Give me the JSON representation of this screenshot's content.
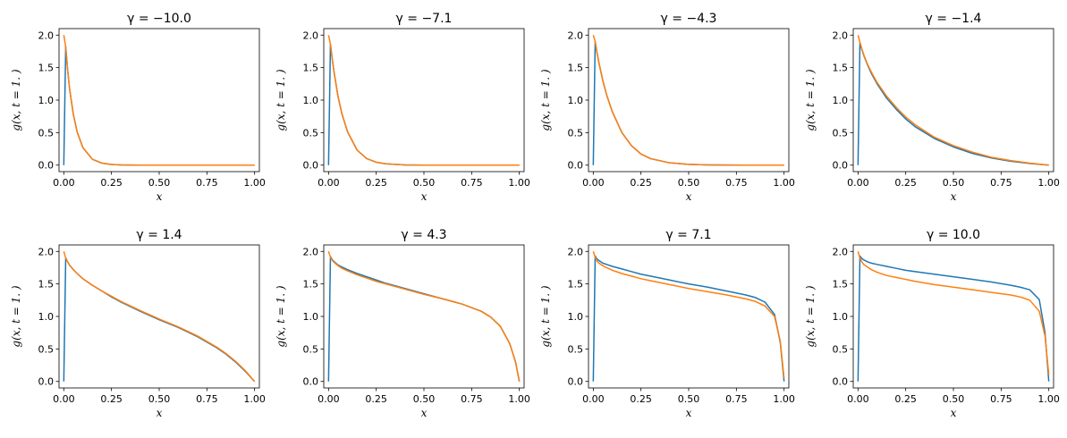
{
  "figure": {
    "colors": {
      "series1": "#1f77b4",
      "series2": "#ff7f0e",
      "axes": "#000000",
      "background": "#ffffff"
    }
  },
  "chart_data": [
    {
      "type": "line",
      "title": "γ = −10.0",
      "xlabel": "x",
      "ylabel": "g(x, t = 1. )",
      "xlim": [
        -0.025,
        1.025
      ],
      "ylim": [
        -0.1,
        2.1
      ],
      "xticks": [
        "0.00",
        "0.25",
        "0.50",
        "0.75",
        "1.00"
      ],
      "yticks": [
        "0.0",
        "0.5",
        "1.0",
        "1.5",
        "2.0"
      ],
      "grid": false,
      "x": [
        0,
        0.01,
        0.02,
        0.03,
        0.05,
        0.07,
        0.1,
        0.15,
        0.2,
        0.25,
        0.3,
        0.4,
        0.5,
        0.6,
        0.7,
        0.8,
        0.9,
        1.0
      ],
      "series": [
        {
          "values": [
            0,
            1.82,
            1.47,
            1.18,
            0.78,
            0.51,
            0.27,
            0.09,
            0.03,
            0.01,
            0.004,
            0,
            0,
            0,
            0,
            0,
            0,
            0
          ]
        },
        {
          "values": [
            2.0,
            1.82,
            1.47,
            1.18,
            0.78,
            0.51,
            0.27,
            0.09,
            0.03,
            0.01,
            0.004,
            0,
            0,
            0,
            0,
            0,
            0,
            0
          ]
        }
      ]
    },
    {
      "type": "line",
      "title": "γ = −7.1",
      "xlabel": "x",
      "ylabel": "g(x, t = 1. )",
      "xlim": [
        -0.025,
        1.025
      ],
      "ylim": [
        -0.1,
        2.1
      ],
      "xticks": [
        "0.00",
        "0.25",
        "0.50",
        "0.75",
        "1.00"
      ],
      "yticks": [
        "0.0",
        "0.5",
        "1.0",
        "1.5",
        "2.0"
      ],
      "grid": false,
      "x": [
        0,
        0.01,
        0.02,
        0.03,
        0.05,
        0.07,
        0.1,
        0.15,
        0.2,
        0.25,
        0.3,
        0.4,
        0.5,
        0.6,
        0.7,
        0.8,
        0.9,
        1.0
      ],
      "series": [
        {
          "values": [
            0,
            1.86,
            1.62,
            1.41,
            1.05,
            0.79,
            0.51,
            0.23,
            0.1,
            0.045,
            0.02,
            0.004,
            0,
            0,
            0,
            0,
            0,
            0
          ]
        },
        {
          "values": [
            2.0,
            1.86,
            1.62,
            1.41,
            1.05,
            0.79,
            0.51,
            0.23,
            0.1,
            0.045,
            0.02,
            0.004,
            0,
            0,
            0,
            0,
            0,
            0
          ]
        }
      ]
    },
    {
      "type": "line",
      "title": "γ = −4.3",
      "xlabel": "x",
      "ylabel": "g(x, t = 1. )",
      "xlim": [
        -0.025,
        1.025
      ],
      "ylim": [
        -0.1,
        2.1
      ],
      "xticks": [
        "0.00",
        "0.25",
        "0.50",
        "0.75",
        "1.00"
      ],
      "yticks": [
        "0.0",
        "0.5",
        "1.0",
        "1.5",
        "2.0"
      ],
      "grid": false,
      "x": [
        0,
        0.01,
        0.02,
        0.03,
        0.05,
        0.07,
        0.1,
        0.15,
        0.2,
        0.25,
        0.3,
        0.4,
        0.5,
        0.6,
        0.7,
        0.8,
        0.9,
        1.0
      ],
      "series": [
        {
          "values": [
            0,
            1.9,
            1.72,
            1.57,
            1.3,
            1.08,
            0.82,
            0.5,
            0.3,
            0.17,
            0.1,
            0.035,
            0.012,
            0.004,
            0.001,
            0,
            0,
            0
          ]
        },
        {
          "values": [
            2.0,
            1.9,
            1.72,
            1.57,
            1.3,
            1.08,
            0.82,
            0.5,
            0.3,
            0.17,
            0.1,
            0.035,
            0.012,
            0.004,
            0.001,
            0,
            0,
            0
          ]
        }
      ]
    },
    {
      "type": "line",
      "title": "γ = −1.4",
      "xlabel": "x",
      "ylabel": "g(x, t = 1. )",
      "xlim": [
        -0.025,
        1.025
      ],
      "ylim": [
        -0.1,
        2.1
      ],
      "xticks": [
        "0.00",
        "0.25",
        "0.50",
        "0.75",
        "1.00"
      ],
      "yticks": [
        "0.0",
        "0.5",
        "1.0",
        "1.5",
        "2.0"
      ],
      "grid": false,
      "x": [
        0,
        0.01,
        0.02,
        0.03,
        0.05,
        0.07,
        0.1,
        0.15,
        0.2,
        0.25,
        0.3,
        0.4,
        0.5,
        0.6,
        0.7,
        0.8,
        0.9,
        1.0
      ],
      "series": [
        {
          "values": [
            0,
            1.88,
            1.78,
            1.69,
            1.54,
            1.41,
            1.25,
            1.03,
            0.86,
            0.71,
            0.59,
            0.41,
            0.28,
            0.18,
            0.11,
            0.06,
            0.025,
            0
          ]
        },
        {
          "values": [
            2.0,
            1.89,
            1.79,
            1.7,
            1.55,
            1.43,
            1.27,
            1.06,
            0.89,
            0.74,
            0.62,
            0.43,
            0.3,
            0.2,
            0.12,
            0.07,
            0.03,
            0
          ]
        }
      ]
    },
    {
      "type": "line",
      "title": "γ = 1.4",
      "xlabel": "x",
      "ylabel": "g(x, t = 1. )",
      "xlim": [
        -0.025,
        1.025
      ],
      "ylim": [
        -0.1,
        2.1
      ],
      "xticks": [
        "0.00",
        "0.25",
        "0.50",
        "0.75",
        "1.00"
      ],
      "yticks": [
        "0.0",
        "0.5",
        "1.0",
        "1.5",
        "2.0"
      ],
      "grid": false,
      "x": [
        0,
        0.01,
        0.02,
        0.03,
        0.05,
        0.07,
        0.1,
        0.15,
        0.2,
        0.25,
        0.3,
        0.4,
        0.5,
        0.6,
        0.7,
        0.8,
        0.85,
        0.9,
        0.95,
        1.0
      ],
      "series": [
        {
          "values": [
            0,
            1.9,
            1.84,
            1.79,
            1.72,
            1.66,
            1.58,
            1.48,
            1.39,
            1.3,
            1.22,
            1.08,
            0.95,
            0.83,
            0.69,
            0.52,
            0.42,
            0.3,
            0.16,
            0
          ]
        },
        {
          "values": [
            2.0,
            1.9,
            1.84,
            1.79,
            1.72,
            1.66,
            1.58,
            1.48,
            1.39,
            1.31,
            1.23,
            1.09,
            0.96,
            0.84,
            0.7,
            0.53,
            0.43,
            0.31,
            0.17,
            0
          ]
        }
      ]
    },
    {
      "type": "line",
      "title": "γ = 4.3",
      "xlabel": "x",
      "ylabel": "g(x, t = 1. )",
      "xlim": [
        -0.025,
        1.025
      ],
      "ylim": [
        -0.1,
        2.1
      ],
      "xticks": [
        "0.00",
        "0.25",
        "0.50",
        "0.75",
        "1.00"
      ],
      "yticks": [
        "0.0",
        "0.5",
        "1.0",
        "1.5",
        "2.0"
      ],
      "grid": false,
      "x": [
        0,
        0.01,
        0.02,
        0.03,
        0.05,
        0.07,
        0.1,
        0.15,
        0.2,
        0.25,
        0.3,
        0.4,
        0.5,
        0.6,
        0.7,
        0.8,
        0.85,
        0.9,
        0.95,
        0.98,
        1.0
      ],
      "series": [
        {
          "values": [
            0,
            1.92,
            1.87,
            1.84,
            1.79,
            1.76,
            1.72,
            1.66,
            1.61,
            1.56,
            1.51,
            1.43,
            1.35,
            1.27,
            1.19,
            1.08,
            0.99,
            0.85,
            0.58,
            0.3,
            0
          ]
        },
        {
          "values": [
            2.0,
            1.91,
            1.86,
            1.83,
            1.78,
            1.74,
            1.7,
            1.64,
            1.59,
            1.54,
            1.5,
            1.42,
            1.34,
            1.27,
            1.19,
            1.08,
            0.99,
            0.85,
            0.58,
            0.3,
            0
          ]
        }
      ]
    },
    {
      "type": "line",
      "title": "γ = 7.1",
      "xlabel": "x",
      "ylabel": "g(x, t = 1. )",
      "xlim": [
        -0.025,
        1.025
      ],
      "ylim": [
        -0.1,
        2.1
      ],
      "xticks": [
        "0.00",
        "0.25",
        "0.50",
        "0.75",
        "1.00"
      ],
      "yticks": [
        "0.0",
        "0.5",
        "1.0",
        "1.5",
        "2.0"
      ],
      "grid": false,
      "x": [
        0,
        0.01,
        0.02,
        0.03,
        0.05,
        0.07,
        0.1,
        0.15,
        0.2,
        0.25,
        0.3,
        0.4,
        0.5,
        0.6,
        0.7,
        0.8,
        0.85,
        0.9,
        0.95,
        0.98,
        1.0
      ],
      "series": [
        {
          "values": [
            0,
            1.93,
            1.88,
            1.86,
            1.82,
            1.8,
            1.77,
            1.73,
            1.69,
            1.65,
            1.62,
            1.56,
            1.5,
            1.45,
            1.39,
            1.33,
            1.29,
            1.22,
            1.03,
            0.6,
            0
          ]
        },
        {
          "values": [
            2.0,
            1.91,
            1.85,
            1.82,
            1.78,
            1.75,
            1.71,
            1.66,
            1.62,
            1.58,
            1.55,
            1.49,
            1.43,
            1.38,
            1.33,
            1.27,
            1.23,
            1.16,
            1.0,
            0.62,
            0.05
          ]
        }
      ]
    },
    {
      "type": "line",
      "title": "γ = 10.0",
      "xlabel": "x",
      "ylabel": "g(x, t = 1. )",
      "xlim": [
        -0.025,
        1.025
      ],
      "ylim": [
        -0.1,
        2.1
      ],
      "xticks": [
        "0.00",
        "0.25",
        "0.50",
        "0.75",
        "1.00"
      ],
      "yticks": [
        "0.0",
        "0.5",
        "1.0",
        "1.5",
        "2.0"
      ],
      "grid": false,
      "x": [
        0,
        0.01,
        0.02,
        0.03,
        0.05,
        0.07,
        0.1,
        0.15,
        0.2,
        0.25,
        0.3,
        0.4,
        0.5,
        0.6,
        0.7,
        0.8,
        0.85,
        0.9,
        0.95,
        0.98,
        1.0
      ],
      "series": [
        {
          "values": [
            0,
            1.93,
            1.89,
            1.87,
            1.84,
            1.82,
            1.8,
            1.77,
            1.74,
            1.71,
            1.69,
            1.65,
            1.61,
            1.57,
            1.53,
            1.48,
            1.45,
            1.41,
            1.26,
            0.75,
            0
          ]
        },
        {
          "values": [
            2.0,
            1.9,
            1.84,
            1.8,
            1.76,
            1.72,
            1.68,
            1.63,
            1.6,
            1.57,
            1.54,
            1.49,
            1.45,
            1.41,
            1.37,
            1.33,
            1.3,
            1.25,
            1.08,
            0.7,
            0.1
          ]
        }
      ]
    }
  ]
}
